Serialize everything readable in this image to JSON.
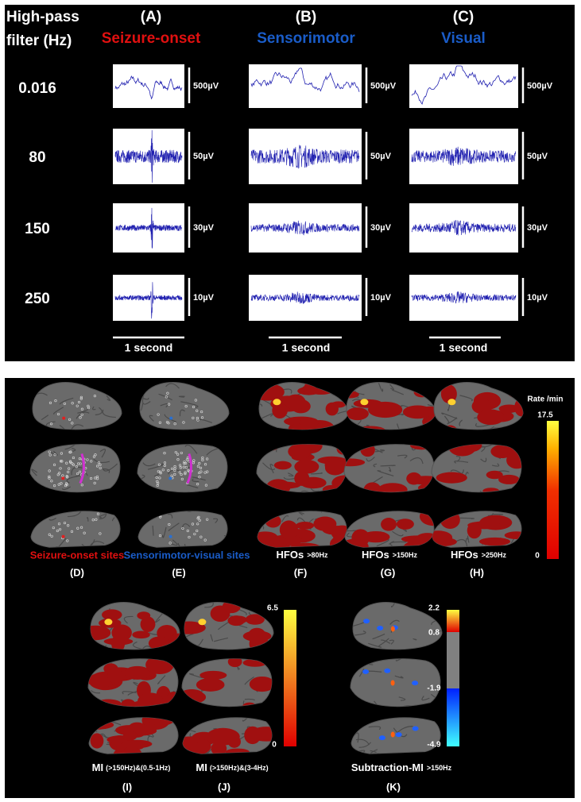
{
  "top": {
    "header": [
      "High-pass",
      "filter (Hz)"
    ],
    "columns": [
      {
        "letter": "(A)",
        "name": "Seizure-onset"
      },
      {
        "letter": "(B)",
        "name": "Sensorimotor"
      },
      {
        "letter": "(C)",
        "name": "Visual"
      }
    ],
    "rows": [
      {
        "filter": "0.016",
        "scale": "500µV"
      },
      {
        "filter": "80",
        "scale": "50µV"
      },
      {
        "filter": "150",
        "scale": "30µV"
      },
      {
        "filter": "250",
        "scale": "10µV"
      }
    ],
    "time_scale": "1 second"
  },
  "bottom": {
    "panels": [
      {
        "label": "Seizure-onset sites",
        "letter": "(D)"
      },
      {
        "label": "Sensorimotor-visual sites",
        "letter": "(E)"
      },
      {
        "label": "HFOs",
        "sub": ">80Hz",
        "letter": "(F)"
      },
      {
        "label": "HFOs",
        "sub": ">150Hz",
        "letter": "(G)"
      },
      {
        "label": "HFOs",
        "sub": ">250Hz",
        "letter": "(H)"
      },
      {
        "label": "MI",
        "sub": "(>150Hz)&(0.5-1Hz)",
        "letter": "(I)"
      },
      {
        "label": "MI",
        "sub": "(>150Hz)&(3-4Hz)",
        "letter": "(J)"
      },
      {
        "label": "Subtraction-MI",
        "sub": ">150Hz",
        "letter": "(K)"
      }
    ],
    "colorbar1": {
      "title": "Rate /min",
      "max": "17.5",
      "min": "0"
    },
    "colorbar2": {
      "max": "6.5",
      "min": "0"
    },
    "colorbar3": {
      "ticks": [
        "2.2",
        "0.8",
        "-1.9",
        "-4.9"
      ]
    }
  }
}
